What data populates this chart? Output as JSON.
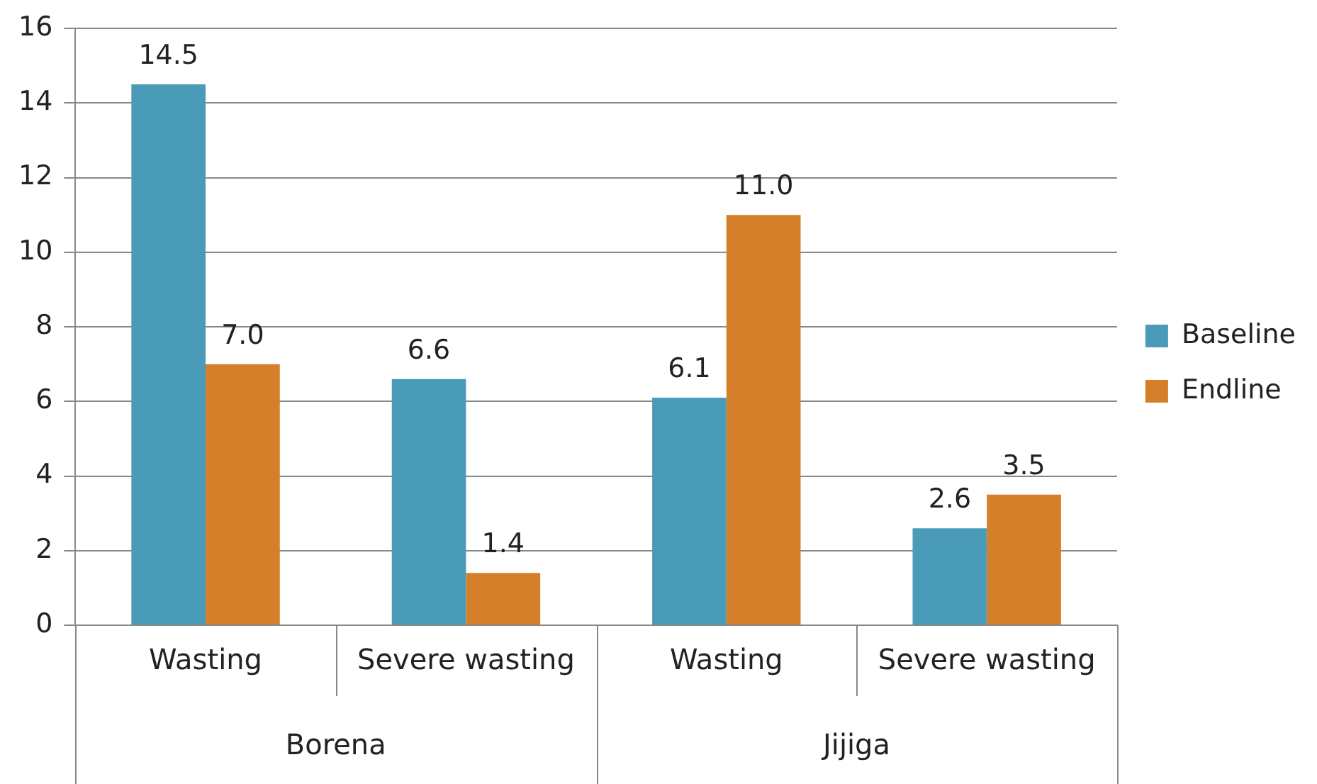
{
  "chart_data": {
    "type": "bar",
    "categories": [
      "Wasting",
      "Severe wasting",
      "Wasting",
      "Severe wasting"
    ],
    "annotations": [
      "Borena",
      "Jijiga"
    ],
    "series": [
      {
        "name": "Baseline",
        "color": "#4a9bb8",
        "values": [
          14.5,
          6.6,
          6.1,
          2.6
        ],
        "value_labels": [
          "14.5",
          "6.6",
          "6.1",
          "2.6"
        ]
      },
      {
        "name": "Endline",
        "color": "#d57f2b",
        "values": [
          7,
          1.4,
          11,
          3.5
        ],
        "value_labels": [
          "7.0",
          "1.4",
          "11.0",
          "3.5"
        ]
      }
    ],
    "ylim": [
      0,
      16
    ],
    "yticks": [
      0,
      2,
      4,
      6,
      8,
      10,
      12,
      14,
      16
    ],
    "grid": "y",
    "legend": "right"
  }
}
